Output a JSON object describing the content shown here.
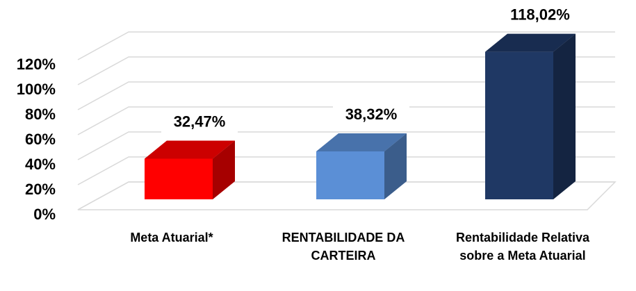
{
  "chart_data": {
    "type": "bar3d",
    "categories": [
      "Meta Atuarial*",
      "RENTABILIDADE DA CARTEIRA",
      "Rentabilidade Relativa sobre a Meta Atuarial"
    ],
    "values": [
      32.47,
      38.32,
      118.02
    ],
    "value_labels": [
      "32,47%",
      "38,32%",
      "118,02%"
    ],
    "colors": [
      "#ff0000",
      "#5b8fd6",
      "#1f3864"
    ],
    "ylim": [
      0,
      120
    ],
    "yticks": [
      {
        "value": 0,
        "label": "0%"
      },
      {
        "value": 20,
        "label": "20%"
      },
      {
        "value": 40,
        "label": "40%"
      },
      {
        "value": 60,
        "label": "60%"
      },
      {
        "value": 80,
        "label": "80%"
      },
      {
        "value": 100,
        "label": "100%"
      },
      {
        "value": 120,
        "label": "120%"
      }
    ],
    "grid": true
  }
}
